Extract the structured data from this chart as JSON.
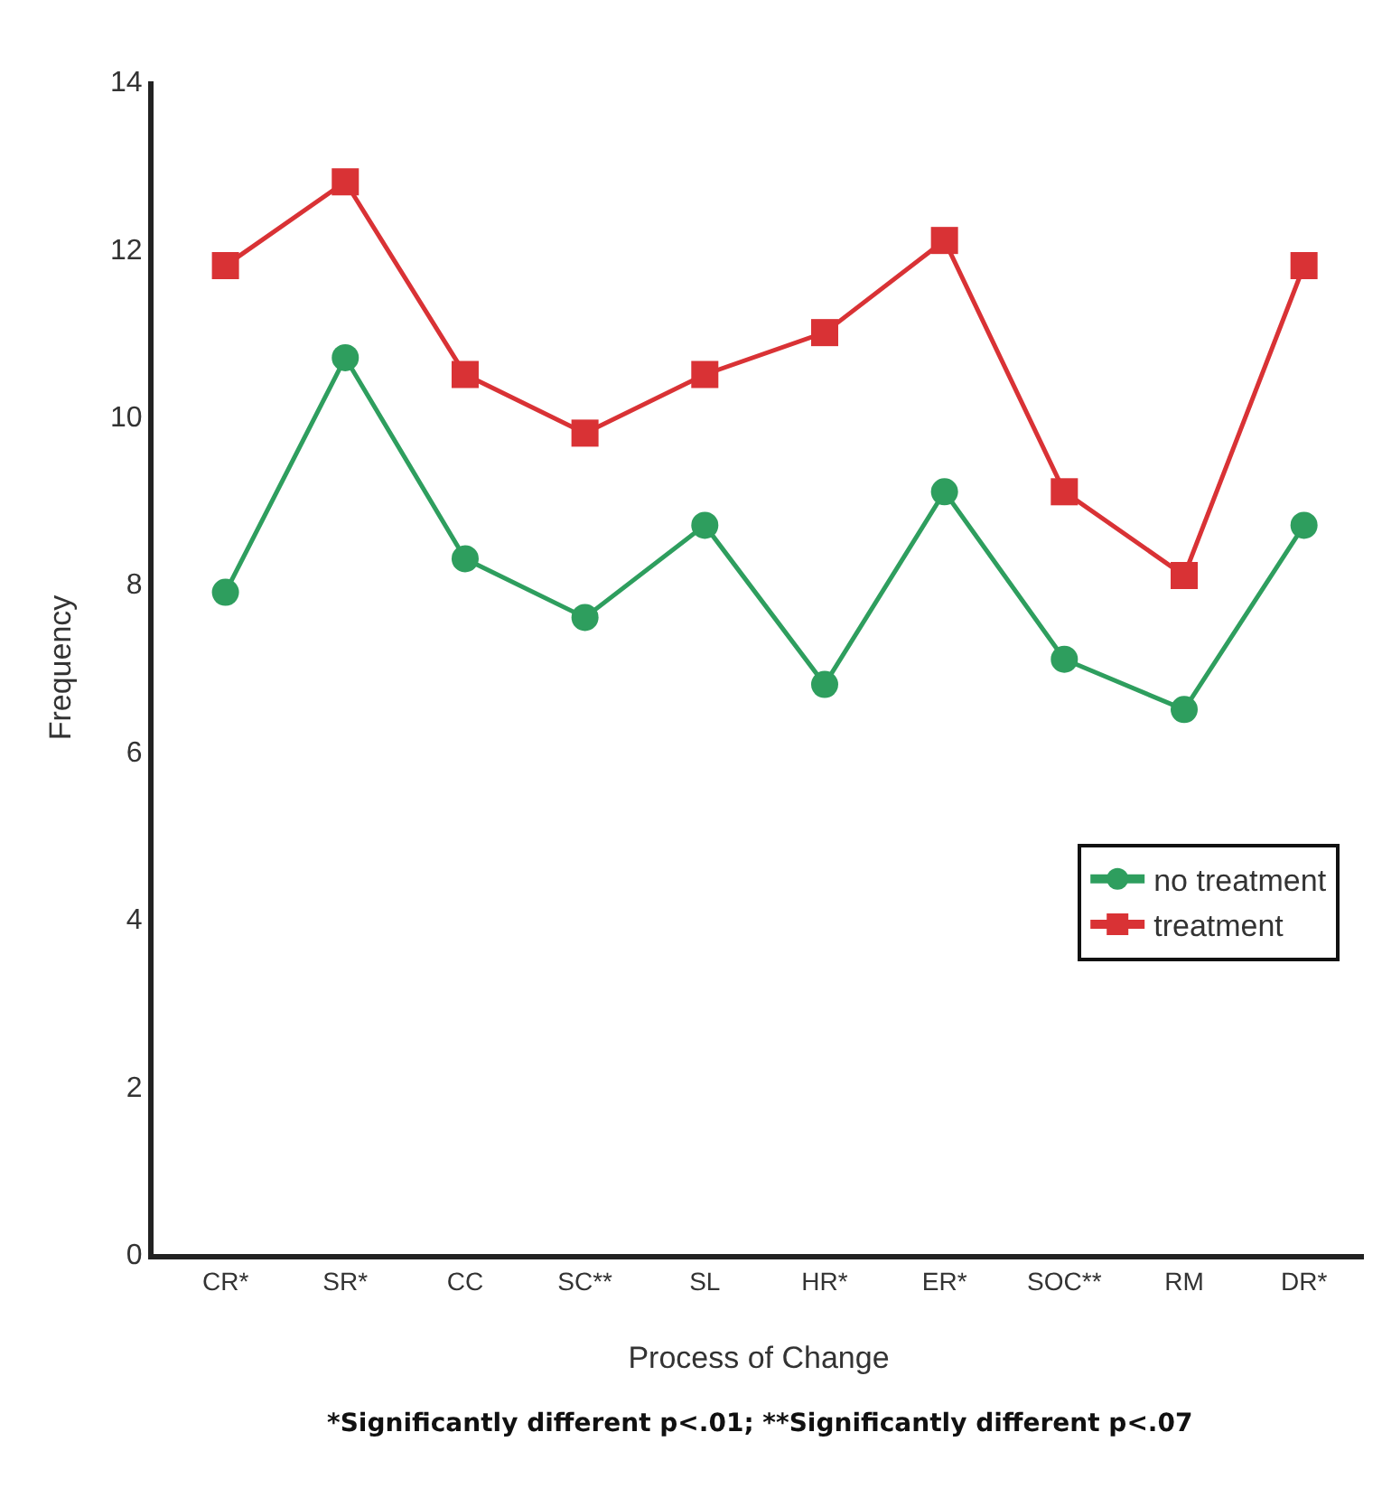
{
  "chart_data": {
    "type": "line",
    "xlabel": "Process of Change",
    "ylabel": "Frequency",
    "categories": [
      "CR*",
      "SR*",
      "CC",
      "SC**",
      "SL",
      "HR*",
      "ER*",
      "SOC**",
      "RM",
      "DR*"
    ],
    "series": [
      {
        "name": "no treatment",
        "color": "#2e9e5e",
        "marker": "circle",
        "values": [
          7.9,
          10.7,
          8.3,
          7.6,
          8.7,
          6.8,
          9.1,
          7.1,
          6.5,
          8.7
        ]
      },
      {
        "name": "treatment",
        "color": "#d93235",
        "marker": "square",
        "values": [
          11.8,
          12.8,
          10.5,
          9.8,
          10.5,
          11.0,
          12.1,
          9.1,
          8.1,
          11.8
        ]
      }
    ],
    "ylim": [
      0,
      14
    ],
    "yticks": [
      0,
      2,
      4,
      6,
      8,
      10,
      12,
      14
    ],
    "grid": false,
    "legend": "right",
    "annotations": [
      "*Significantly different p<.01; **Significantly different p<.07"
    ]
  }
}
